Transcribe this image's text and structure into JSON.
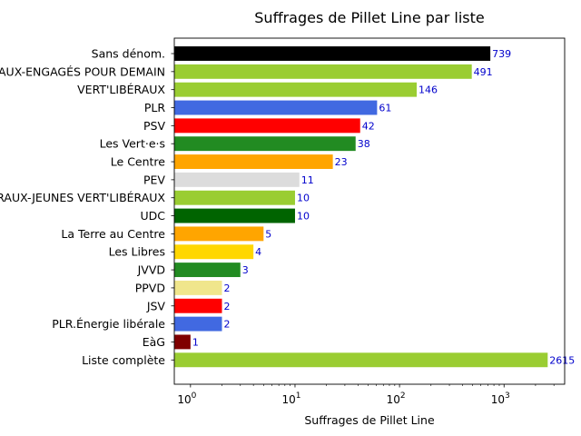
{
  "chart_data": {
    "type": "bar",
    "orientation": "horizontal",
    "title": "Suffrages de Pillet Line par liste",
    "xlabel": "Suffrages de Pillet Line",
    "ylabel": "",
    "xscale": "log",
    "xlim": [
      0.7,
      3800
    ],
    "grid": false,
    "x_ticks": [
      {
        "base": "10",
        "exp": "0"
      },
      {
        "base": "10",
        "exp": "1"
      },
      {
        "base": "10",
        "exp": "2"
      },
      {
        "base": "10",
        "exp": "3"
      }
    ],
    "categories": [
      "Sans dénom.",
      "VERT'LIBÉRAUX-ENGAGÉS POUR DEMAIN",
      "VERT'LIBÉRAUX",
      "PLR",
      "PSV",
      "Les Vert·e·s",
      "Le Centre",
      "PEV",
      "VERT'LIBÉRAUX-JEUNES VERT'LIBÉRAUX",
      "UDC",
      "La Terre au Centre",
      "Les Libres",
      "JVVD",
      "PPVD",
      "JSV",
      "PLR.Énergie libérale",
      "EàG",
      "Liste complète"
    ],
    "values": [
      739,
      491,
      146,
      61,
      42,
      38,
      23,
      11,
      10,
      10,
      5,
      4,
      3,
      2,
      2,
      2,
      1,
      2615
    ],
    "value_labels": [
      "739",
      "491",
      "146",
      "61",
      "42",
      "38",
      "23",
      "11",
      "10",
      "10",
      "5",
      "4",
      "3",
      "2",
      "2",
      "2",
      "1",
      "2615"
    ],
    "colors": [
      "#000000",
      "#9acd32",
      "#9acd32",
      "#4169e1",
      "#ff0000",
      "#228b22",
      "#ffa500",
      "#dcdcdc",
      "#9acd32",
      "#006400",
      "#ffa500",
      "#ffd700",
      "#228b22",
      "#f0e68c",
      "#ff0000",
      "#4169e1",
      "#800000",
      "#9acd32"
    ],
    "value_label_color": "#0000cc"
  }
}
